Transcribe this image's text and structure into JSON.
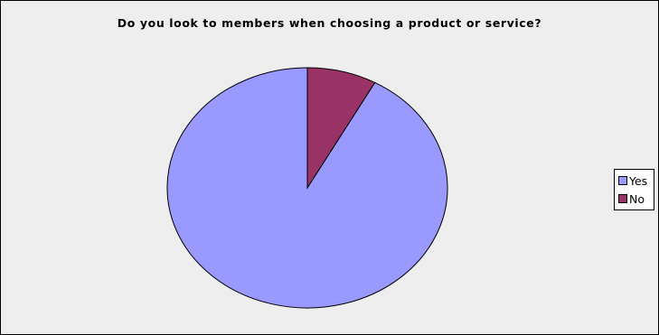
{
  "chart_data": {
    "type": "pie",
    "title": "Do you look to members when choosing a product or service?",
    "categories": [
      "Yes",
      "No"
    ],
    "values": [
      92,
      8
    ],
    "colors": [
      "#9999ff",
      "#993366"
    ],
    "legend_position": "right"
  }
}
